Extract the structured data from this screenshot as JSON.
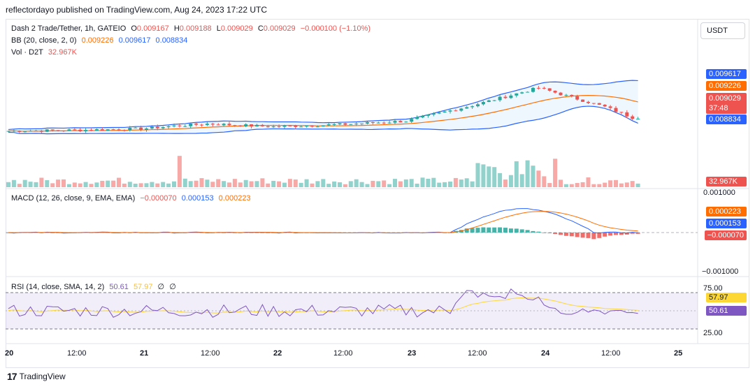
{
  "header": "reflectordayo published on TradingView.com, Aug 24, 2023 17:22 UTC",
  "currency": "USDT",
  "main": {
    "symbol": "Dash 2 Trade/Tether, 1h, GATEIO",
    "o_label": "O",
    "o": "0.009167",
    "h_label": "H",
    "h": "0.009188",
    "l_label": "L",
    "l": "0.009029",
    "c_label": "C",
    "c": "0.009029",
    "change": "−0.000100 (−1.10%)",
    "bb_label": "BB (20, close, 2, 0)",
    "bb_basis": "0.009226",
    "bb_upper": "0.009617",
    "bb_lower": "0.008834",
    "vol_label": "Vol · D2T",
    "vol": "32.967K",
    "labels": {
      "upper": "0.009617",
      "basis": "0.009226",
      "close": "0.009029",
      "countdown": "37:48",
      "lower": "0.008834",
      "volume": "32.967K"
    }
  },
  "macd": {
    "label": "MACD (12, 26, close, 9, EMA, EMA)",
    "hist": "−0.000070",
    "macd": "0.000153",
    "signal": "0.000223",
    "axis_top": "0.001000",
    "axis_bottom": "−0.001000",
    "labels": {
      "signal": "0.000223",
      "macd": "0.000153",
      "hist": "−0.000070"
    }
  },
  "rsi": {
    "label": "RSI (14, close, SMA, 14, 2)",
    "rsi": "50.61",
    "sma": "57.97",
    "v1": "∅",
    "v2": "∅",
    "axis_top": "75.00",
    "axis_bottom": "25.00",
    "labels": {
      "sma": "57.97",
      "rsi": "50.61"
    }
  },
  "xaxis": [
    "20",
    "12:00",
    "21",
    "12:00",
    "22",
    "12:00",
    "23",
    "12:00",
    "24",
    "12:00",
    "25"
  ],
  "footer": "TradingView",
  "colors": {
    "up": "#26a69a",
    "down": "#ef5350",
    "bb_band": "#2962ff",
    "bb_basis": "#ff6d00",
    "rsi": "#7e57c2",
    "rsi_sma": "#fdd835",
    "macd": "#2962ff",
    "signal": "#ff6d00"
  },
  "chart_data": {
    "type": "candlestick",
    "title": "Dash 2 Trade/Tether, 1h, GATEIO",
    "x_range": [
      "Aug 20",
      "Aug 24 ~19:00"
    ],
    "price_range": [
      0.0084,
      0.01
    ],
    "close_samples": [
      {
        "t": "Aug 20 00:00",
        "close": 0.00884
      },
      {
        "t": "Aug 20 12:00",
        "close": 0.00885
      },
      {
        "t": "Aug 21 00:00",
        "close": 0.00887
      },
      {
        "t": "Aug 21 06:00",
        "close": 0.00891
      },
      {
        "t": "Aug 21 12:00",
        "close": 0.00894
      },
      {
        "t": "Aug 22 00:00",
        "close": 0.0089
      },
      {
        "t": "Aug 22 12:00",
        "close": 0.00893
      },
      {
        "t": "Aug 23 00:00",
        "close": 0.00898
      },
      {
        "t": "Aug 23 12:00",
        "close": 0.0092
      },
      {
        "t": "Aug 24 00:00",
        "close": 0.00945
      },
      {
        "t": "Aug 24 12:00",
        "close": 0.00918
      },
      {
        "t": "Aug 24 17:00",
        "close": 0.009029
      }
    ],
    "indicators": {
      "bb_upper": 0.009617,
      "bb_basis": 0.009226,
      "bb_lower": 0.008834,
      "volume": "32.967K",
      "macd": 0.000153,
      "signal": 0.000223,
      "histogram": -7e-05,
      "rsi": 50.61,
      "rsi_sma": 57.97
    },
    "rsi_levels": [
      75,
      25
    ]
  }
}
